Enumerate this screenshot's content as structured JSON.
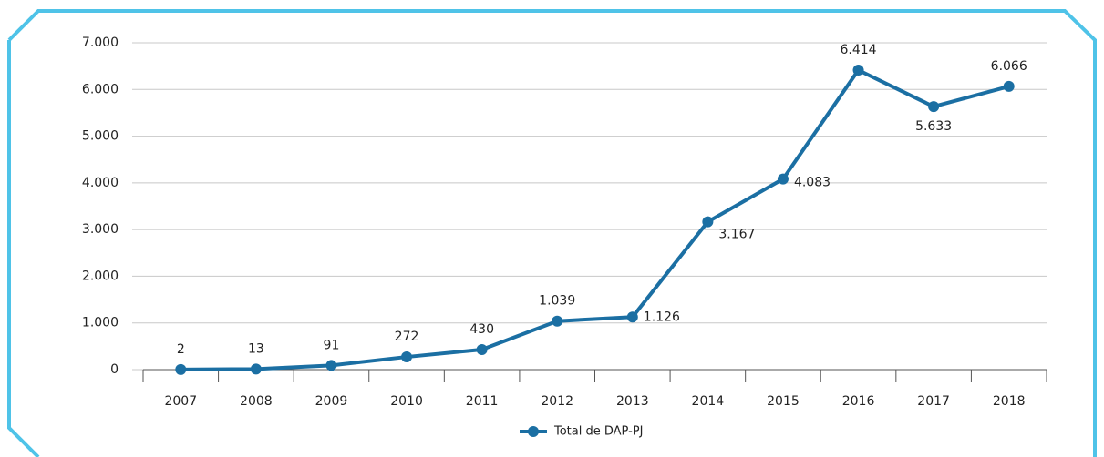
{
  "chart_data": {
    "type": "line",
    "categories": [
      "2007",
      "2008",
      "2009",
      "2010",
      "2011",
      "2012",
      "2013",
      "2014",
      "2015",
      "2016",
      "2017",
      "2018"
    ],
    "series": [
      {
        "name": "Total de DAP-PJ",
        "color": "#1b6fa3",
        "values": [
          2,
          13,
          91,
          272,
          430,
          1039,
          1126,
          3167,
          4083,
          6414,
          5633,
          6066
        ],
        "value_labels": [
          "2",
          "13",
          "91",
          "272",
          "430",
          "1.039",
          "1.126",
          "3.167",
          "4.083",
          "6.414",
          "5.633",
          "6.066"
        ]
      }
    ],
    "ylim": [
      0,
      7000
    ],
    "yticks": [
      0,
      {
        "value": 1000,
        "label": "1.000"
      },
      {
        "value": 2000,
        "label": "2.000"
      },
      {
        "value": 3000,
        "label": "3.000"
      },
      {
        "value": 4000,
        "label": "4.000"
      },
      {
        "value": 5000,
        "label": "5.000"
      },
      {
        "value": 6000,
        "label": "6.000"
      },
      {
        "value": 7000,
        "label": "7.000"
      }
    ],
    "grid": true,
    "legend": "bottom"
  }
}
